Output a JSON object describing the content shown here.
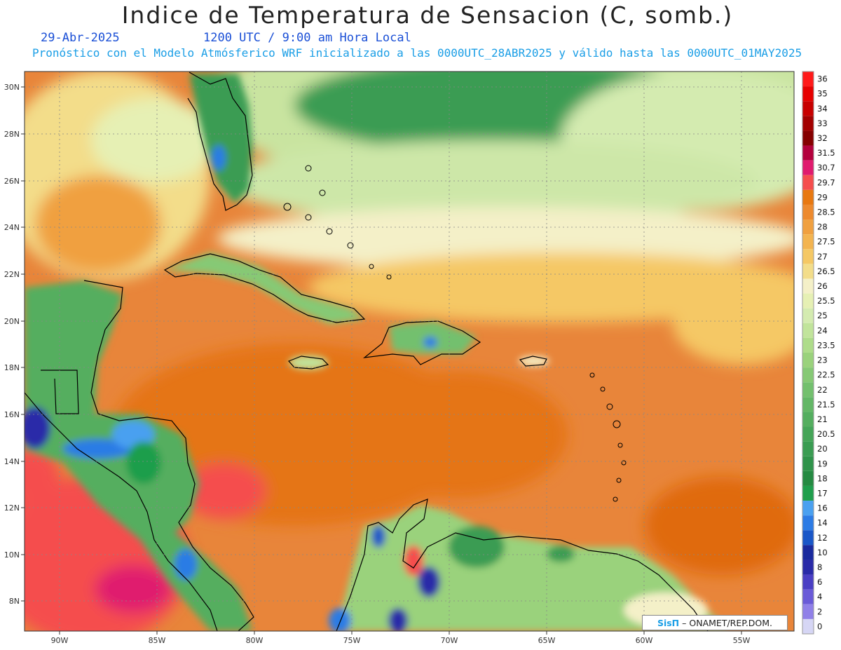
{
  "header": {
    "title": "Indice de Temperatura de Sensacion (C, somb.)",
    "date": "29-Abr-2025",
    "time": "1200 UTC / 9:00 am Hora Local",
    "subtitle": "Pronóstico con el Modelo Atmósferico WRF inicializado a las 0000UTC_28ABR2025 y válido hasta las  0000UTC_01MAY2025"
  },
  "map": {
    "lat_labels": [
      "30N",
      "28N",
      "26N",
      "24N",
      "22N",
      "20N",
      "18N",
      "16N",
      "14N",
      "12N",
      "10N",
      "8N"
    ],
    "lon_labels": [
      "90W",
      "85W",
      "80W",
      "75W",
      "70W",
      "65W",
      "60W",
      "55W"
    ],
    "ocean_base_color": "#e8853a",
    "land_color": "#5cb85c"
  },
  "colorbar": {
    "labels": [
      "36",
      "35",
      "34",
      "33",
      "32",
      "31.5",
      "30.7",
      "29.7",
      "29",
      "28.5",
      "28",
      "27.5",
      "27",
      "26.5",
      "26",
      "25.5",
      "25",
      "24",
      "23.5",
      "23",
      "22.5",
      "22",
      "21.5",
      "21",
      "20.5",
      "20",
      "19",
      "18",
      "17",
      "16",
      "14",
      "12",
      "10",
      "8",
      "6",
      "4",
      "2",
      "0"
    ],
    "colors": [
      "#ff1a1a",
      "#e60000",
      "#c80000",
      "#a30000",
      "#850000",
      "#b3003c",
      "#e01a6e",
      "#f54d4d",
      "#e87810",
      "#ed8a2e",
      "#f0a040",
      "#f3b450",
      "#f5c865",
      "#f3dd8a",
      "#f4f0c8",
      "#e6f0b4",
      "#d4ebb0",
      "#c1e49b",
      "#aedc8a",
      "#9ad27c",
      "#86c975",
      "#73c06e",
      "#63b766",
      "#54ae5f",
      "#45a558",
      "#3a9c52",
      "#2f934a",
      "#258a42",
      "#1f9e4c",
      "#4aa0f0",
      "#2c7be5",
      "#1a57c8",
      "#1a2a9e",
      "#2a2aa8",
      "#4a3ec4",
      "#6a5ad8",
      "#9080e8",
      "#d6d6f5"
    ]
  },
  "credit": {
    "logo": "SisΠ",
    "text": "–  ONAMET/REP.DOM."
  }
}
